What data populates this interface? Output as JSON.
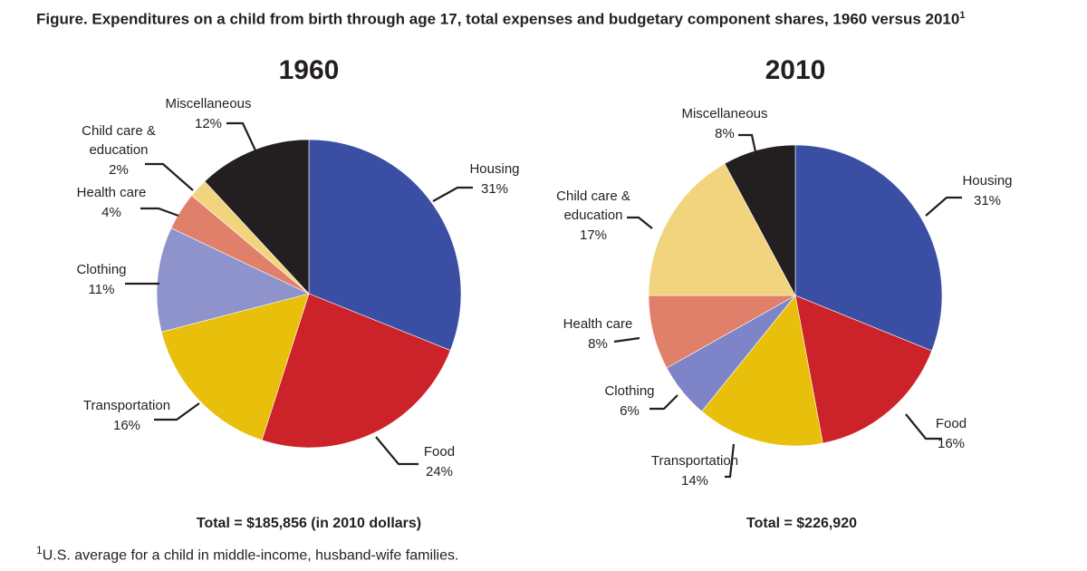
{
  "title": {
    "text": "Figure. Expenditures on a child from birth through age 17, total expenses and budgetary component shares, 1960 versus 2010",
    "footnote_marker": "1"
  },
  "footnote": {
    "marker": "1",
    "text": "U.S. average for a child in middle-income, husband-wife families."
  },
  "chart_data": [
    {
      "type": "pie",
      "title": "1960",
      "total_label": "Total = $185,856 (in 2010 dollars)",
      "start": "top, clockwise",
      "slices": [
        {
          "label": "Housing",
          "value": 31,
          "value_label": "31%",
          "color": "#3a4fa3"
        },
        {
          "label": "Food",
          "value": 24,
          "value_label": "24%",
          "color": "#cc2229"
        },
        {
          "label": "Transportation",
          "value": 16,
          "value_label": "16%",
          "color": "#e8bf0a"
        },
        {
          "label": "Clothing",
          "value": 11,
          "value_label": "11%",
          "color": "#8e93cc"
        },
        {
          "label": "Health care",
          "value": 4,
          "value_label": "4%",
          "color": "#e0806a"
        },
        {
          "label": "Child care & education",
          "label_lines": [
            "Child care &",
            "education"
          ],
          "value": 2,
          "value_label": "2%",
          "color": "#f2d47e"
        },
        {
          "label": "Miscellaneous",
          "value": 12,
          "value_label": "12%",
          "color": "#231f20"
        }
      ]
    },
    {
      "type": "pie",
      "title": "2010",
      "total_label": "Total = $226,920",
      "start": "top, clockwise",
      "slices": [
        {
          "label": "Housing",
          "value": 31,
          "value_label": "31%",
          "color": "#3a4fa3"
        },
        {
          "label": "Food",
          "value": 16,
          "value_label": "16%",
          "color": "#cc2229"
        },
        {
          "label": "Transportation",
          "value": 14,
          "value_label": "14%",
          "color": "#e8bf0a"
        },
        {
          "label": "Clothing",
          "value": 6,
          "value_label": "6%",
          "color": "#7d84c8"
        },
        {
          "label": "Health care",
          "value": 8,
          "value_label": "8%",
          "color": "#e0806a"
        },
        {
          "label": "Child care & education",
          "label_lines": [
            "Child care &",
            "education"
          ],
          "value": 17,
          "value_label": "17%",
          "color": "#f2d47e"
        },
        {
          "label": "Miscellaneous",
          "value": 8,
          "value_label": "8%",
          "color": "#231f20"
        }
      ]
    }
  ]
}
